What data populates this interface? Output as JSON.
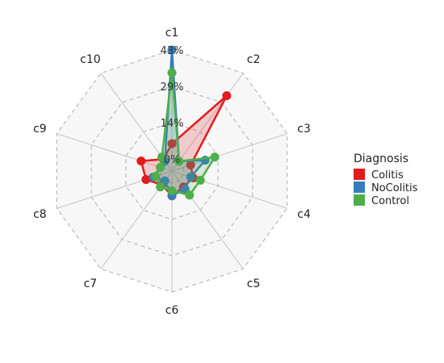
{
  "chart_data": {
    "type": "radar",
    "axes": [
      "c1",
      "c2",
      "c3",
      "c4",
      "c5",
      "c6",
      "c7",
      "c8",
      "c9",
      "c10"
    ],
    "tick_labels": [
      "0%",
      "14%",
      "29%",
      "43%"
    ],
    "range": [
      0,
      43
    ],
    "grid_levels": 3,
    "legend": {
      "title": "Diagnosis",
      "placement": "right"
    },
    "series": [
      {
        "name": "Colitis",
        "color": "#E41A1C",
        "values": [
          6,
          32,
          3,
          4,
          3,
          5,
          2,
          6,
          8,
          1
        ]
      },
      {
        "name": "NoColitis",
        "color": "#377EB8",
        "values": [
          43,
          0,
          9,
          3,
          4,
          5,
          0,
          3,
          0,
          0
        ]
      },
      {
        "name": "Control",
        "color": "#4DAF4A",
        "values": [
          34,
          0,
          13,
          7,
          7,
          3,
          3,
          2,
          0,
          2
        ]
      }
    ]
  }
}
